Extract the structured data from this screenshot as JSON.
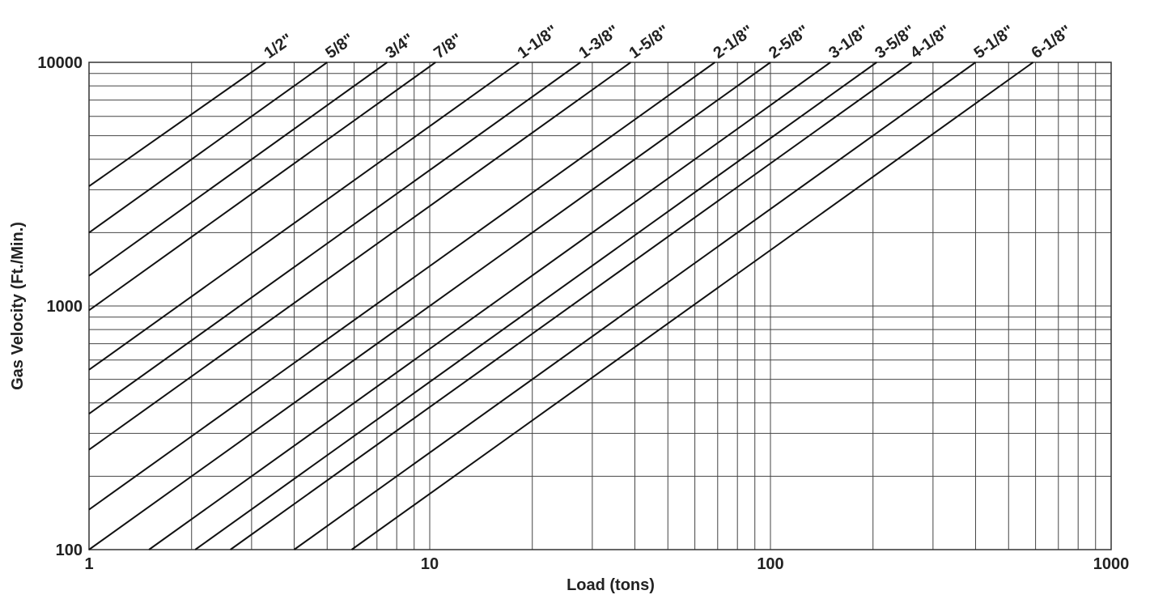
{
  "chart_data": {
    "type": "line",
    "title": "",
    "xlabel": "Load (tons)",
    "ylabel": "Gas Velocity (Ft./Min.)",
    "x_scale": "log",
    "y_scale": "log",
    "xlim": [
      1,
      1000
    ],
    "ylim": [
      100,
      10000
    ],
    "grid": true,
    "x_ticks": [
      1,
      10,
      100,
      1000
    ],
    "x_tick_labels": [
      "1",
      "10",
      "100",
      "1000"
    ],
    "y_ticks": [
      100,
      1000,
      10000
    ],
    "y_tick_labels": [
      "100",
      "1000",
      "10000"
    ],
    "series": [
      {
        "name": "1/2\"",
        "x": [
          1,
          3.3
        ],
        "y": [
          3100,
          10000
        ]
      },
      {
        "name": "5/8\"",
        "x": [
          1,
          5
        ],
        "y": [
          2000,
          10000
        ]
      },
      {
        "name": "3/4\"",
        "x": [
          1,
          7.5
        ],
        "y": [
          1330,
          10000
        ]
      },
      {
        "name": "7/8\"",
        "x": [
          1,
          10.4
        ],
        "y": [
          960,
          10000
        ]
      },
      {
        "name": "1-1/8\"",
        "x": [
          1,
          18.3
        ],
        "y": [
          547,
          10000
        ]
      },
      {
        "name": "1-3/8\"",
        "x": [
          1,
          27.7
        ],
        "y": [
          361,
          10000
        ]
      },
      {
        "name": "1-5/8\"",
        "x": [
          1,
          38.9
        ],
        "y": [
          257,
          10000
        ]
      },
      {
        "name": "2-1/8\"",
        "x": [
          1,
          68.7
        ],
        "y": [
          146,
          10000
        ]
      },
      {
        "name": "2-5/8\"",
        "x": [
          1,
          100
        ],
        "y": [
          100,
          10000
        ]
      },
      {
        "name": "3-1/8\"",
        "x": [
          1.5,
          150
        ],
        "y": [
          100,
          10000
        ]
      },
      {
        "name": "3-5/8\"",
        "x": [
          2.05,
          205
        ],
        "y": [
          100,
          10000
        ]
      },
      {
        "name": "4-1/8\"",
        "x": [
          2.6,
          260
        ],
        "y": [
          100,
          10000
        ]
      },
      {
        "name": "5-1/8\"",
        "x": [
          4.0,
          400
        ],
        "y": [
          100,
          10000
        ]
      },
      {
        "name": "6-1/8\"",
        "x": [
          5.9,
          590
        ],
        "y": [
          100,
          10000
        ]
      }
    ]
  }
}
